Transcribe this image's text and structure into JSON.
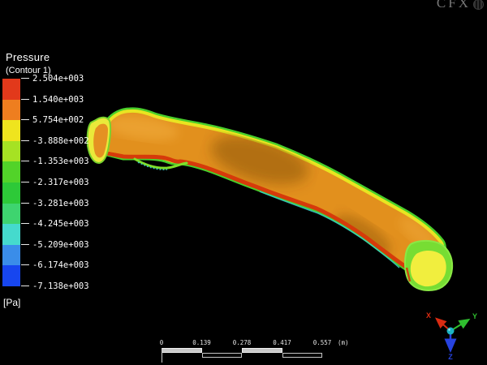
{
  "window": {
    "background": "#000000",
    "brand": "CFX"
  },
  "legend": {
    "title": "Pressure",
    "subtitle": "(Contour 1)",
    "unit": "[Pa]",
    "ticks": [
      "2.504e+003",
      "1.540e+003",
      "5.754e+002",
      "-3.888e+002",
      "-1.353e+003",
      "-2.317e+003",
      "-3.281e+003",
      "-4.245e+003",
      "-5.209e+003",
      "-6.174e+003",
      "-7.138e+003"
    ],
    "bands": [
      "#e2391b",
      "#ee7e1f",
      "#efe41e",
      "#a6e223",
      "#52d329",
      "#2dc938",
      "#3ed46f",
      "#45dacd",
      "#3a8de9",
      "#1746ef"
    ]
  },
  "ruler": {
    "labels": [
      "0",
      "0.139",
      "0.278",
      "0.417",
      "0.557"
    ],
    "unit": "(m)"
  },
  "triad": {
    "axes": [
      {
        "label": "X",
        "color": "#d92b12"
      },
      {
        "label": "Y",
        "color": "#2fbe2f"
      },
      {
        "label": "Z",
        "color": "#2743e0"
      }
    ],
    "ball_color": "#1cb4c4"
  },
  "colors": {
    "bg": "#000000",
    "surface_orange": "#e2901d",
    "edge_red": "#d63a0a",
    "rim_green": "#49cf2b",
    "rim_yellow": "#e9e520",
    "tip_cyan": "#38cfc8",
    "wiggle_green": "#7fe02a",
    "left_endplate_yellow": "#eae93a",
    "left_endplate_face": "#e59122",
    "right_endplate_green": "#77dd33",
    "right_endplate_face": "#f1ee3e",
    "ruler_fill": "#c9c9c9",
    "logo_gray": "#8a8a8a"
  }
}
